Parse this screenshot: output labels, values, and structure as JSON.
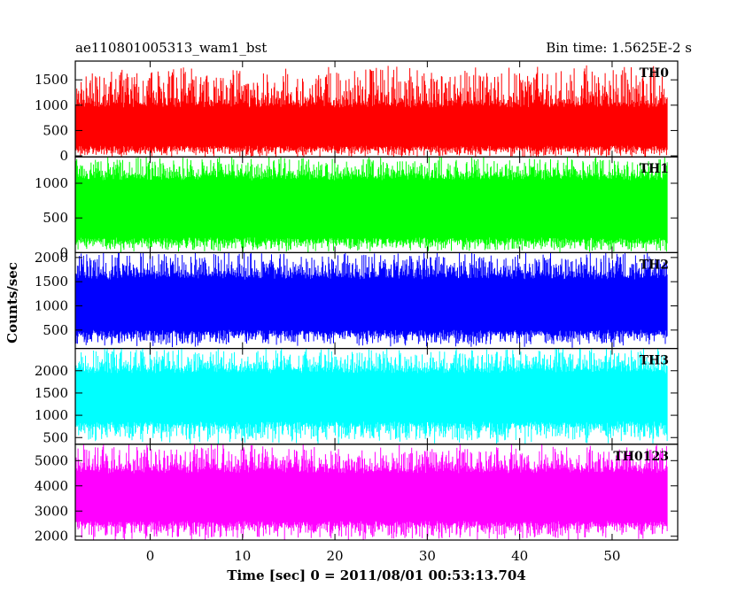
{
  "chart_data": {
    "type": "line",
    "title_left": "ae110801005313_wam1_bst",
    "title_right": "Bin time: 1.5625E-2 s",
    "xlabel": "Time [sec] 0 = 2011/08/01 00:53:13.704",
    "ylabel": "Counts/sec",
    "xlim": [
      -8.1,
      57.1
    ],
    "x_data_range": [
      -8,
      56
    ],
    "x_ticks": [
      0,
      10,
      20,
      30,
      40,
      50
    ],
    "x_tick_labels": [
      "0",
      "10",
      "20",
      "30",
      "40",
      "50"
    ],
    "panels": [
      {
        "name": "TH0",
        "color": "#ff0000",
        "ylim": [
          -20,
          1870
        ],
        "y_ticks": [
          0,
          500,
          1000,
          1500
        ],
        "y_tick_labels": [
          "0",
          "500",
          "1000",
          "1500"
        ],
        "level_low": 150,
        "level_high": 1000,
        "spike_min": 0,
        "spike_max": 1750
      },
      {
        "name": "TH1",
        "color": "#00ff00",
        "ylim": [
          0,
          1380
        ],
        "y_ticks": [
          0,
          500,
          1000
        ],
        "y_tick_labels": [
          "0",
          "500",
          "1000"
        ],
        "level_low": 180,
        "level_high": 1080,
        "spike_min": 30,
        "spike_max": 1380
      },
      {
        "name": "TH2",
        "color": "#0000ff",
        "ylim": [
          120,
          2100
        ],
        "y_ticks": [
          500,
          1000,
          1500,
          2000
        ],
        "y_tick_labels": [
          "500",
          "1000",
          "1500",
          "2000"
        ],
        "level_low": 450,
        "level_high": 1600,
        "spike_min": 180,
        "spike_max": 2100
      },
      {
        "name": "TH3",
        "color": "#00ffff",
        "ylim": [
          350,
          2500
        ],
        "y_ticks": [
          500,
          1000,
          1500,
          2000
        ],
        "y_tick_labels": [
          "500",
          "1000",
          "1500",
          "2000"
        ],
        "level_low": 800,
        "level_high": 2000,
        "spike_min": 400,
        "spike_max": 2500
      },
      {
        "name": "TH0123",
        "color": "#ff00ff",
        "ylim": [
          1850,
          5650
        ],
        "y_ticks": [
          2000,
          3000,
          4000,
          5000
        ],
        "y_tick_labels": [
          "2000",
          "3000",
          "4000",
          "5000"
        ],
        "level_low": 2500,
        "level_high": 4600,
        "spike_min": 1900,
        "spike_max": 5600
      }
    ]
  }
}
